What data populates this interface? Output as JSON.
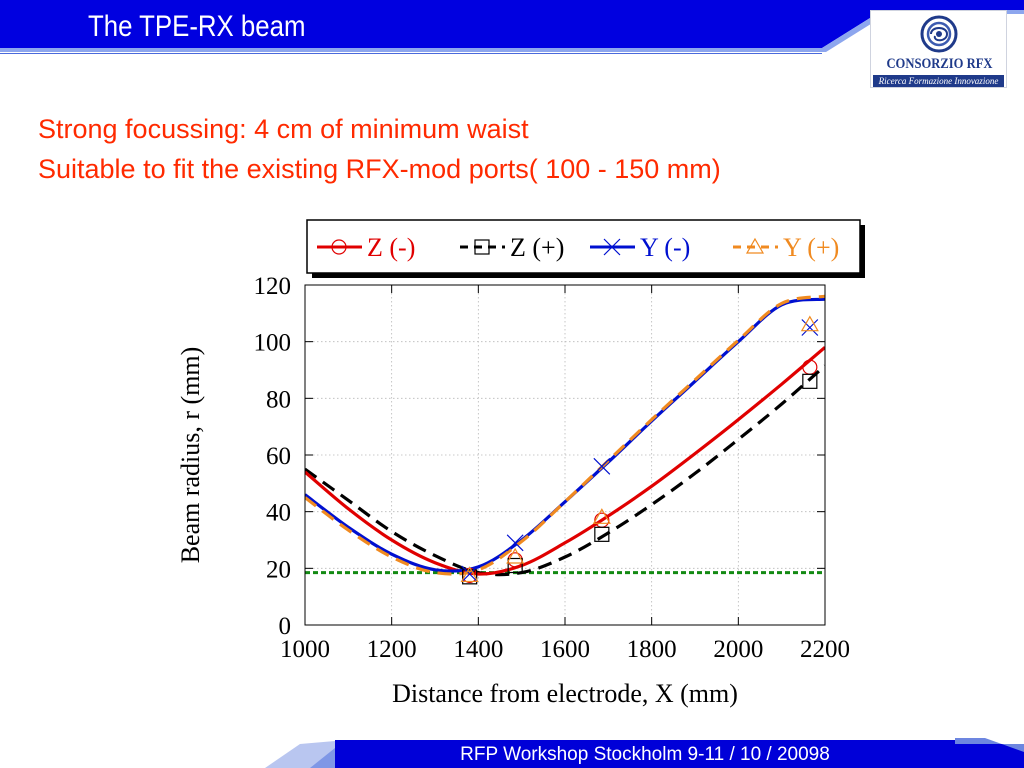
{
  "slide": {
    "title": "The TPE-RX beam",
    "subtitle_lines": [
      "Strong focussing: 4 cm of minimum waist",
      "Suitable to fit the existing RFX-mod  ports( 100 - 150 mm)"
    ],
    "footer": "RFP Workshop Stockholm 9-11 / 10 / 20098"
  },
  "logo": {
    "name": "CONSORZIO RFX",
    "tagline": "Ricerca Formazione Innovazione",
    "icon": "consorzio-rfx-swirl-icon"
  },
  "colors": {
    "header_blue": "#0000e0",
    "footer_blue": "#0000d8",
    "subtitle_red": "#ff2a00",
    "logo_blue": "#1f3a8a"
  },
  "chart_data": {
    "type": "line",
    "title": "",
    "xlabel": "Distance from electrode, X (mm)",
    "ylabel": "Beam radius, r (mm)",
    "xlim": [
      1000,
      2200
    ],
    "ylim": [
      0,
      120
    ],
    "xticks": [
      1000,
      1200,
      1400,
      1600,
      1800,
      2000,
      2200
    ],
    "yticks": [
      0,
      20,
      40,
      60,
      80,
      100,
      120
    ],
    "grid": true,
    "legend_position": "top",
    "series": [
      {
        "name": "Z (-)",
        "color": "#e00000",
        "dash": "solid",
        "marker": "circle",
        "line": [
          [
            1000,
            54
          ],
          [
            1100,
            41
          ],
          [
            1200,
            30
          ],
          [
            1300,
            22
          ],
          [
            1400,
            18
          ],
          [
            1500,
            21
          ],
          [
            1600,
            29
          ],
          [
            1700,
            38.5
          ],
          [
            1800,
            49
          ],
          [
            1900,
            60.5
          ],
          [
            2000,
            72.5
          ],
          [
            2100,
            85
          ],
          [
            2200,
            98
          ]
        ],
        "markers": [
          [
            1380,
            17.5
          ],
          [
            1485,
            23
          ],
          [
            1685,
            37
          ],
          [
            2165,
            91
          ]
        ]
      },
      {
        "name": "Z (+)",
        "color": "#000000",
        "dash": "dashed",
        "marker": "square",
        "line": [
          [
            1000,
            55
          ],
          [
            1100,
            44
          ],
          [
            1200,
            33
          ],
          [
            1300,
            24.5
          ],
          [
            1400,
            18.5
          ],
          [
            1500,
            18.5
          ],
          [
            1600,
            24
          ],
          [
            1700,
            32.5
          ],
          [
            1800,
            42.5
          ],
          [
            1900,
            53.5
          ],
          [
            2000,
            65.5
          ],
          [
            2100,
            78
          ],
          [
            2200,
            91.5
          ]
        ],
        "markers": [
          [
            1380,
            17
          ],
          [
            1485,
            21
          ],
          [
            1685,
            32
          ],
          [
            2165,
            86
          ]
        ]
      },
      {
        "name": "Y (-)",
        "color": "#0010d0",
        "dash": "solid",
        "marker": "x",
        "line": [
          [
            1000,
            46
          ],
          [
            1100,
            34.5
          ],
          [
            1200,
            25
          ],
          [
            1300,
            19.5
          ],
          [
            1400,
            20.5
          ],
          [
            1500,
            30
          ],
          [
            1600,
            43.5
          ],
          [
            1700,
            57.5
          ],
          [
            1800,
            72
          ],
          [
            1900,
            86
          ],
          [
            2000,
            100
          ],
          [
            2100,
            113
          ],
          [
            2200,
            115
          ]
        ],
        "markers": [
          [
            1380,
            18
          ],
          [
            1485,
            29
          ],
          [
            1685,
            56
          ],
          [
            2165,
            105
          ]
        ]
      },
      {
        "name": "Y (+)",
        "color": "#f08a20",
        "dash": "dashed",
        "marker": "triangle",
        "line": [
          [
            1000,
            45
          ],
          [
            1100,
            33.5
          ],
          [
            1200,
            24
          ],
          [
            1300,
            18.5
          ],
          [
            1400,
            19.5
          ],
          [
            1500,
            29.5
          ],
          [
            1600,
            43.5
          ],
          [
            1700,
            58
          ],
          [
            1800,
            72.5
          ],
          [
            1900,
            86.5
          ],
          [
            2000,
            100.5
          ],
          [
            2100,
            113.5
          ],
          [
            2200,
            116
          ]
        ],
        "markers": [
          [
            1380,
            17.5
          ],
          [
            1485,
            24
          ],
          [
            1685,
            38
          ],
          [
            2165,
            106
          ]
        ]
      }
    ],
    "reference_line": {
      "y": 18.5,
      "color": "#138a13",
      "dash": "dotted"
    }
  }
}
